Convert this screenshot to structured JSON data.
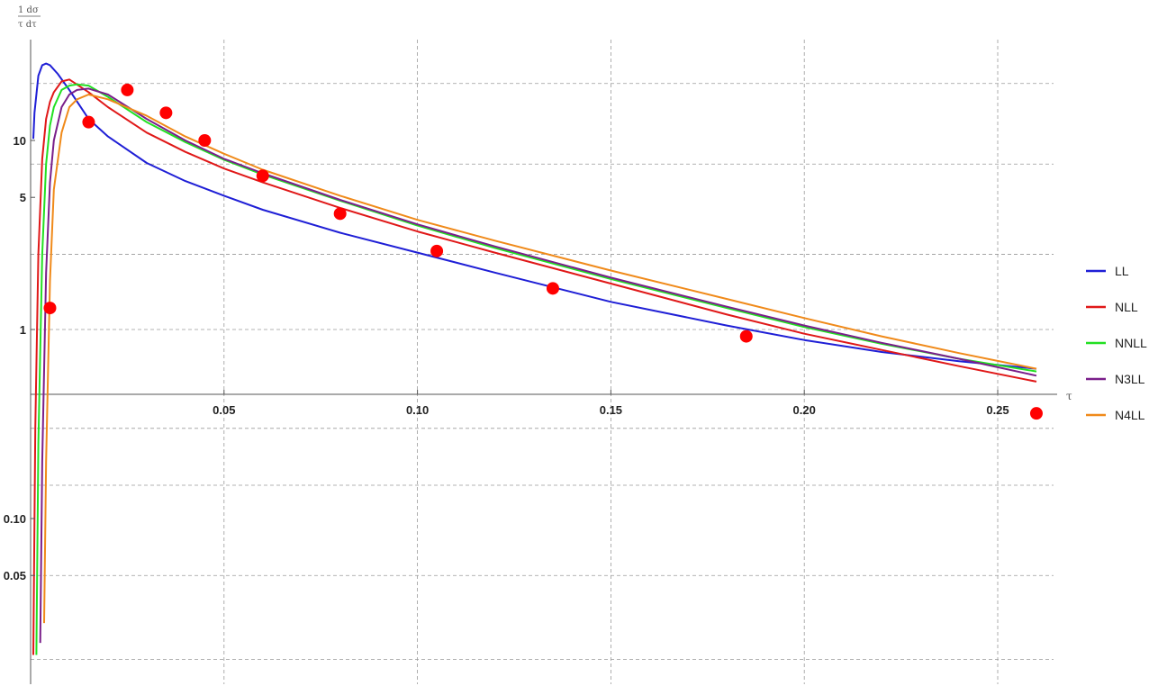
{
  "chart_data": {
    "type": "line",
    "xlabel": "τ",
    "ylabel_top": "1  dσ",
    "ylabel_bottom": "τ  dτ",
    "y_scale": "log",
    "xlim": [
      0,
      0.265
    ],
    "ylim": [
      0.012,
      40
    ],
    "grid": true,
    "legend_position": "right",
    "x_ticks": [
      {
        "value": 0.05,
        "label": "0.05"
      },
      {
        "value": 0.1,
        "label": "0.10"
      },
      {
        "value": 0.15,
        "label": "0.15"
      },
      {
        "value": 0.2,
        "label": "0.20"
      },
      {
        "value": 0.25,
        "label": "0.25"
      }
    ],
    "y_ticks": [
      {
        "value": 10,
        "label": "10"
      },
      {
        "value": 5,
        "label": "5"
      },
      {
        "value": 1,
        "label": "1"
      },
      {
        "value": 0.1,
        "label": "0.10"
      },
      {
        "value": 0.05,
        "label": "0.05"
      }
    ],
    "series": [
      {
        "name": "LL",
        "color": "#1f1fd6",
        "x": [
          0.0007,
          0.001,
          0.002,
          0.003,
          0.004,
          0.005,
          0.007,
          0.01,
          0.015,
          0.02,
          0.03,
          0.04,
          0.05,
          0.06,
          0.08,
          0.1,
          0.12,
          0.15,
          0.18,
          0.2,
          0.22,
          0.24,
          0.26
        ],
        "y": [
          10.2,
          14.0,
          22.0,
          25.0,
          25.5,
          25.0,
          22.5,
          18.5,
          13.0,
          10.5,
          7.6,
          6.1,
          5.1,
          4.3,
          3.25,
          2.55,
          2.0,
          1.4,
          1.05,
          0.88,
          0.76,
          0.68,
          0.62
        ]
      },
      {
        "name": "NLL",
        "color": "#e01818",
        "x": [
          0.0007,
          0.0012,
          0.002,
          0.003,
          0.004,
          0.005,
          0.006,
          0.008,
          0.01,
          0.015,
          0.02,
          0.03,
          0.04,
          0.05,
          0.06,
          0.08,
          0.1,
          0.12,
          0.15,
          0.18,
          0.2,
          0.22,
          0.24,
          0.26
        ],
        "y": [
          0.019,
          0.3,
          2.5,
          8.0,
          13.0,
          16.0,
          18.0,
          20.5,
          21.0,
          18.0,
          15.0,
          11.0,
          8.7,
          7.1,
          6.0,
          4.4,
          3.3,
          2.55,
          1.75,
          1.2,
          0.95,
          0.78,
          0.64,
          0.53
        ]
      },
      {
        "name": "NNLL",
        "color": "#22e022",
        "x": [
          0.0015,
          0.002,
          0.003,
          0.004,
          0.005,
          0.006,
          0.008,
          0.01,
          0.012,
          0.015,
          0.02,
          0.03,
          0.04,
          0.05,
          0.06,
          0.08,
          0.1,
          0.12,
          0.15,
          0.18,
          0.2,
          0.22,
          0.24,
          0.26
        ],
        "y": [
          0.019,
          0.25,
          2.5,
          7.5,
          12.0,
          15.0,
          18.5,
          19.5,
          19.8,
          19.5,
          17.0,
          12.5,
          9.8,
          7.9,
          6.6,
          4.8,
          3.55,
          2.7,
          1.85,
          1.3,
          1.03,
          0.84,
          0.7,
          0.6
        ]
      },
      {
        "name": "N3LL",
        "color": "#7a1f8a",
        "x": [
          0.0025,
          0.003,
          0.004,
          0.005,
          0.006,
          0.008,
          0.01,
          0.012,
          0.015,
          0.02,
          0.03,
          0.04,
          0.05,
          0.06,
          0.08,
          0.1,
          0.12,
          0.15,
          0.18,
          0.2,
          0.22,
          0.24,
          0.26
        ],
        "y": [
          0.022,
          0.2,
          2.0,
          6.0,
          10.0,
          15.0,
          17.5,
          18.5,
          18.8,
          17.5,
          13.0,
          10.0,
          8.0,
          6.7,
          4.85,
          3.6,
          2.75,
          1.88,
          1.32,
          1.05,
          0.85,
          0.7,
          0.57
        ]
      },
      {
        "name": "N4LL",
        "color": "#f08a1a",
        "x": [
          0.0035,
          0.004,
          0.005,
          0.006,
          0.008,
          0.01,
          0.012,
          0.015,
          0.02,
          0.03,
          0.04,
          0.05,
          0.06,
          0.08,
          0.1,
          0.12,
          0.15,
          0.18,
          0.2,
          0.22,
          0.24,
          0.26
        ],
        "y": [
          0.028,
          0.2,
          1.8,
          5.5,
          11.0,
          15.0,
          16.5,
          17.5,
          16.5,
          13.5,
          10.5,
          8.5,
          7.0,
          5.1,
          3.8,
          2.95,
          2.05,
          1.45,
          1.15,
          0.92,
          0.75,
          0.62
        ]
      }
    ],
    "markers": {
      "color": "#ff0000",
      "x": [
        0.005,
        0.015,
        0.025,
        0.035,
        0.045,
        0.06,
        0.08,
        0.105,
        0.135,
        0.185,
        0.26
      ],
      "y": [
        1.3,
        12.5,
        18.5,
        14.0,
        10.0,
        6.5,
        4.1,
        2.6,
        1.65,
        0.92,
        0.36
      ]
    }
  }
}
